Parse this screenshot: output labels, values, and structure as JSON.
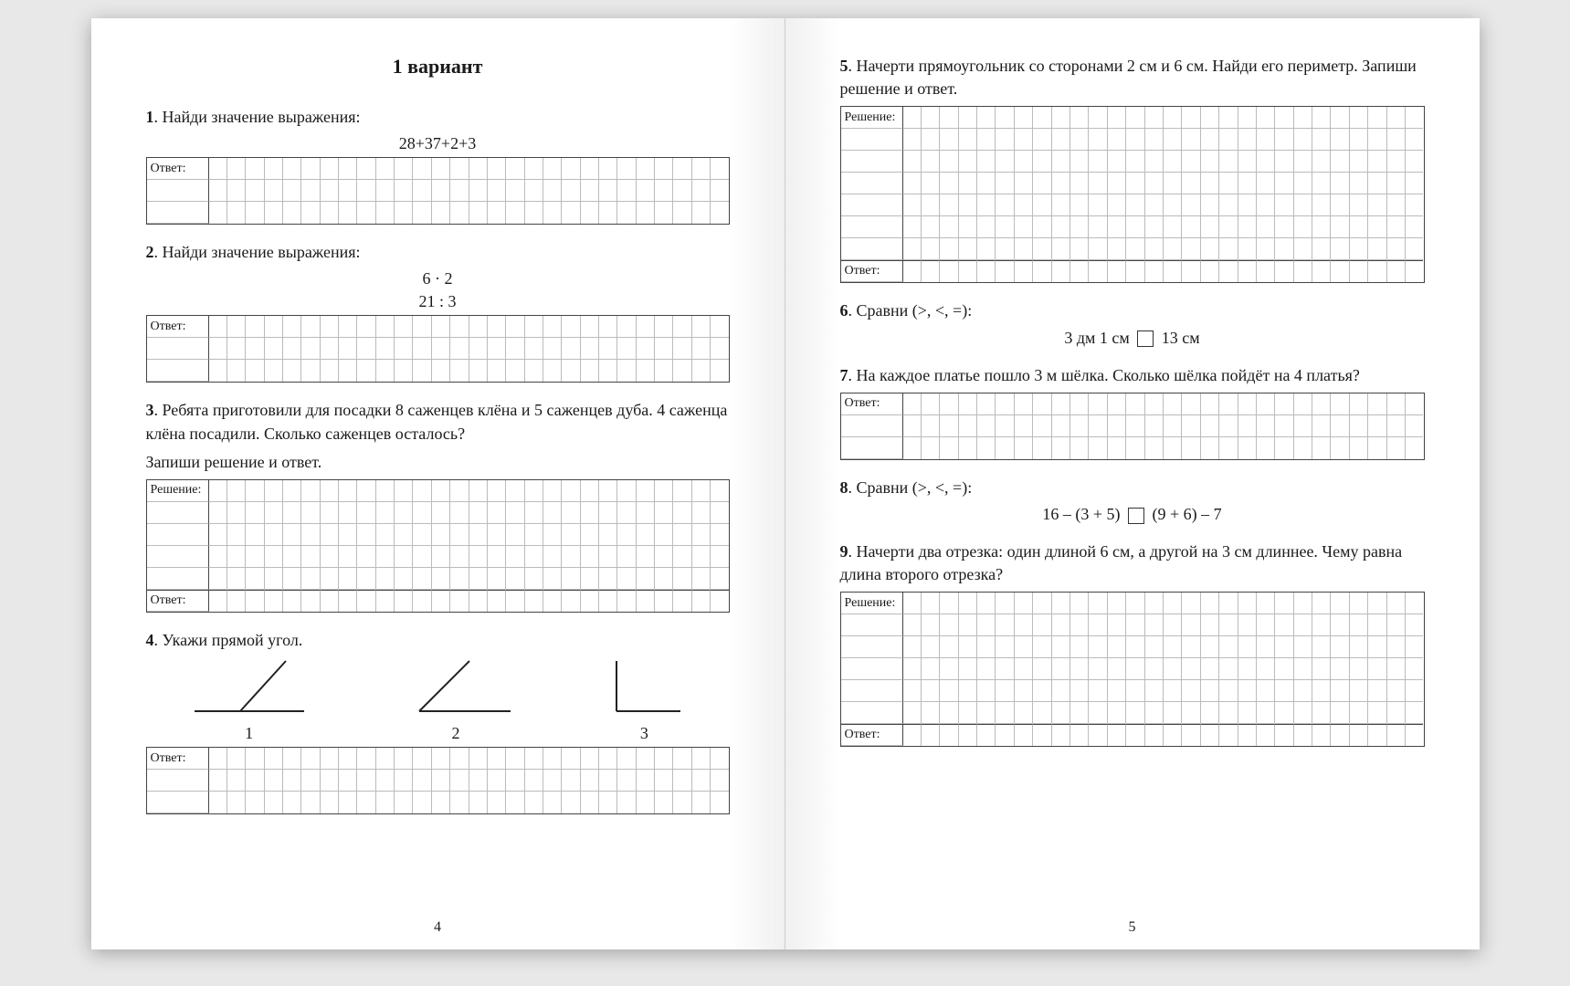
{
  "title": "1 вариант",
  "answer_label": "Ответ:",
  "solution_label": "Решение:",
  "left": {
    "page_num": "4",
    "p1": {
      "num": "1",
      "text": "Найди значение выражения:",
      "expr": "28+37+2+3"
    },
    "p2": {
      "num": "2",
      "text": "Найди значение выражения:",
      "expr1": "6 · 2",
      "expr2": "21 : 3"
    },
    "p3": {
      "num": "3",
      "text": "Ребята приготовили для посадки 8 саженцев клёна и 5 саженцев дуба. 4 саженца клёна посадили. Сколько саженцев осталось?",
      "hint": "Запиши решение и ответ."
    },
    "p4": {
      "num": "4",
      "text": "Укажи прямой угол.",
      "labels": [
        "1",
        "2",
        "3"
      ]
    }
  },
  "right": {
    "page_num": "5",
    "p5": {
      "num": "5",
      "text": "Начерти прямоугольник со сторонами 2 см и 6 см. Найди его периметр. Запиши решение и ответ."
    },
    "p6": {
      "num": "6",
      "text": "Сравни (>, <, =):",
      "expr_left": "3 дм 1 см",
      "expr_right": "13 см"
    },
    "p7": {
      "num": "7",
      "text": "На каждое платье пошло 3 м шёлка. Сколько шёлка пойдёт на 4 платья?"
    },
    "p8": {
      "num": "8",
      "text": "Сравни (>, <, =):",
      "expr_left": "16 – (3 + 5)",
      "expr_right": "(9 + 6) – 7"
    },
    "p9": {
      "num": "9",
      "text": "Начерти два отрезка: один длиной 6 см, а другой на 3 см длиннее. Чему равна длина второго отрезка?"
    }
  },
  "grid": {
    "cols": 28,
    "border_color": "#444",
    "cell_border": "#bbb",
    "bg": "#ffffff"
  }
}
